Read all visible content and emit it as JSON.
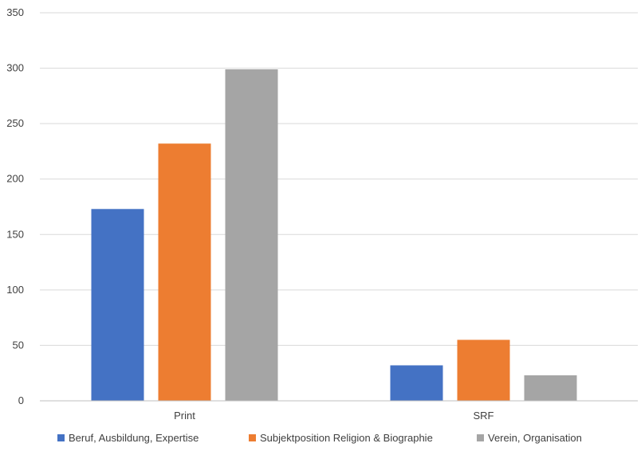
{
  "chart_data": {
    "type": "bar",
    "categories": [
      "Print",
      "SRF"
    ],
    "series": [
      {
        "name": "Beruf, Ausbildung, Expertise",
        "color": "#4472C4",
        "values": [
          173,
          32
        ]
      },
      {
        "name": "Subjektposition Religion & Biographie",
        "color": "#ED7D31",
        "values": [
          232,
          55
        ]
      },
      {
        "name": "Verein, Organisation",
        "color": "#A5A5A5",
        "values": [
          299,
          23
        ]
      }
    ],
    "ylim": [
      0,
      350
    ],
    "yticks": [
      0,
      50,
      100,
      150,
      200,
      250,
      300,
      350
    ],
    "grid": true,
    "legend_position": "bottom"
  }
}
